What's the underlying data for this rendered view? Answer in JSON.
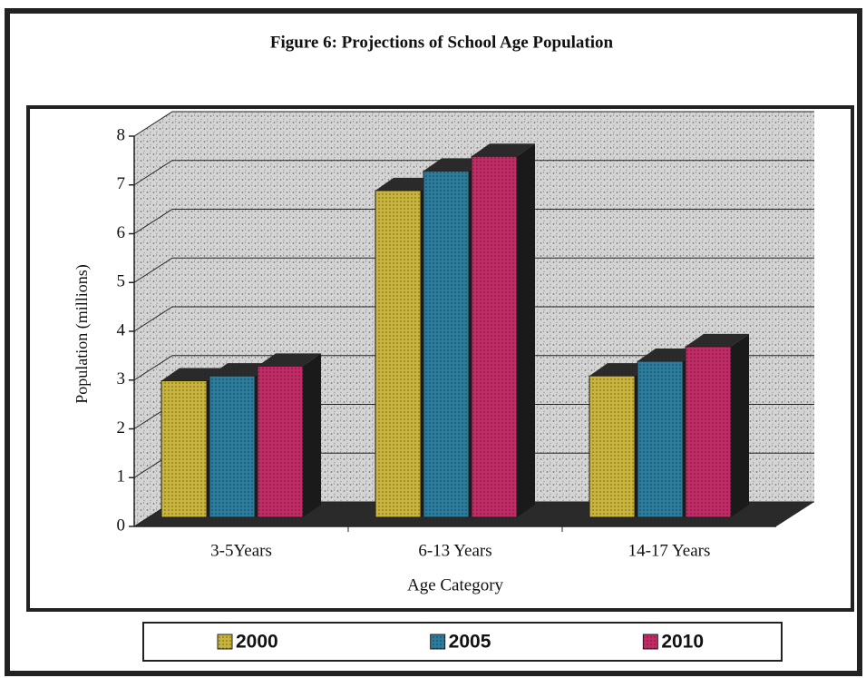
{
  "chart_data": {
    "type": "bar",
    "title": "Figure 6: Projections of School Age Population",
    "x_label": "Age Category",
    "y_label": "Population (millions)",
    "categories": [
      "3-5Years",
      "6-13 Years",
      "14-17 Years"
    ],
    "series": [
      {
        "name": "2000",
        "color": "#c9b43c",
        "values": [
          2.8,
          6.7,
          2.9
        ]
      },
      {
        "name": "2005",
        "color": "#2b7c9c",
        "values": [
          2.9,
          7.1,
          3.2
        ]
      },
      {
        "name": "2010",
        "color": "#c22c66",
        "values": [
          3.1,
          7.4,
          3.5
        ]
      }
    ],
    "ylim": [
      0,
      8
    ],
    "yticks": [
      0,
      1,
      2,
      3,
      4,
      5,
      6,
      7,
      8
    ],
    "grid": true
  }
}
